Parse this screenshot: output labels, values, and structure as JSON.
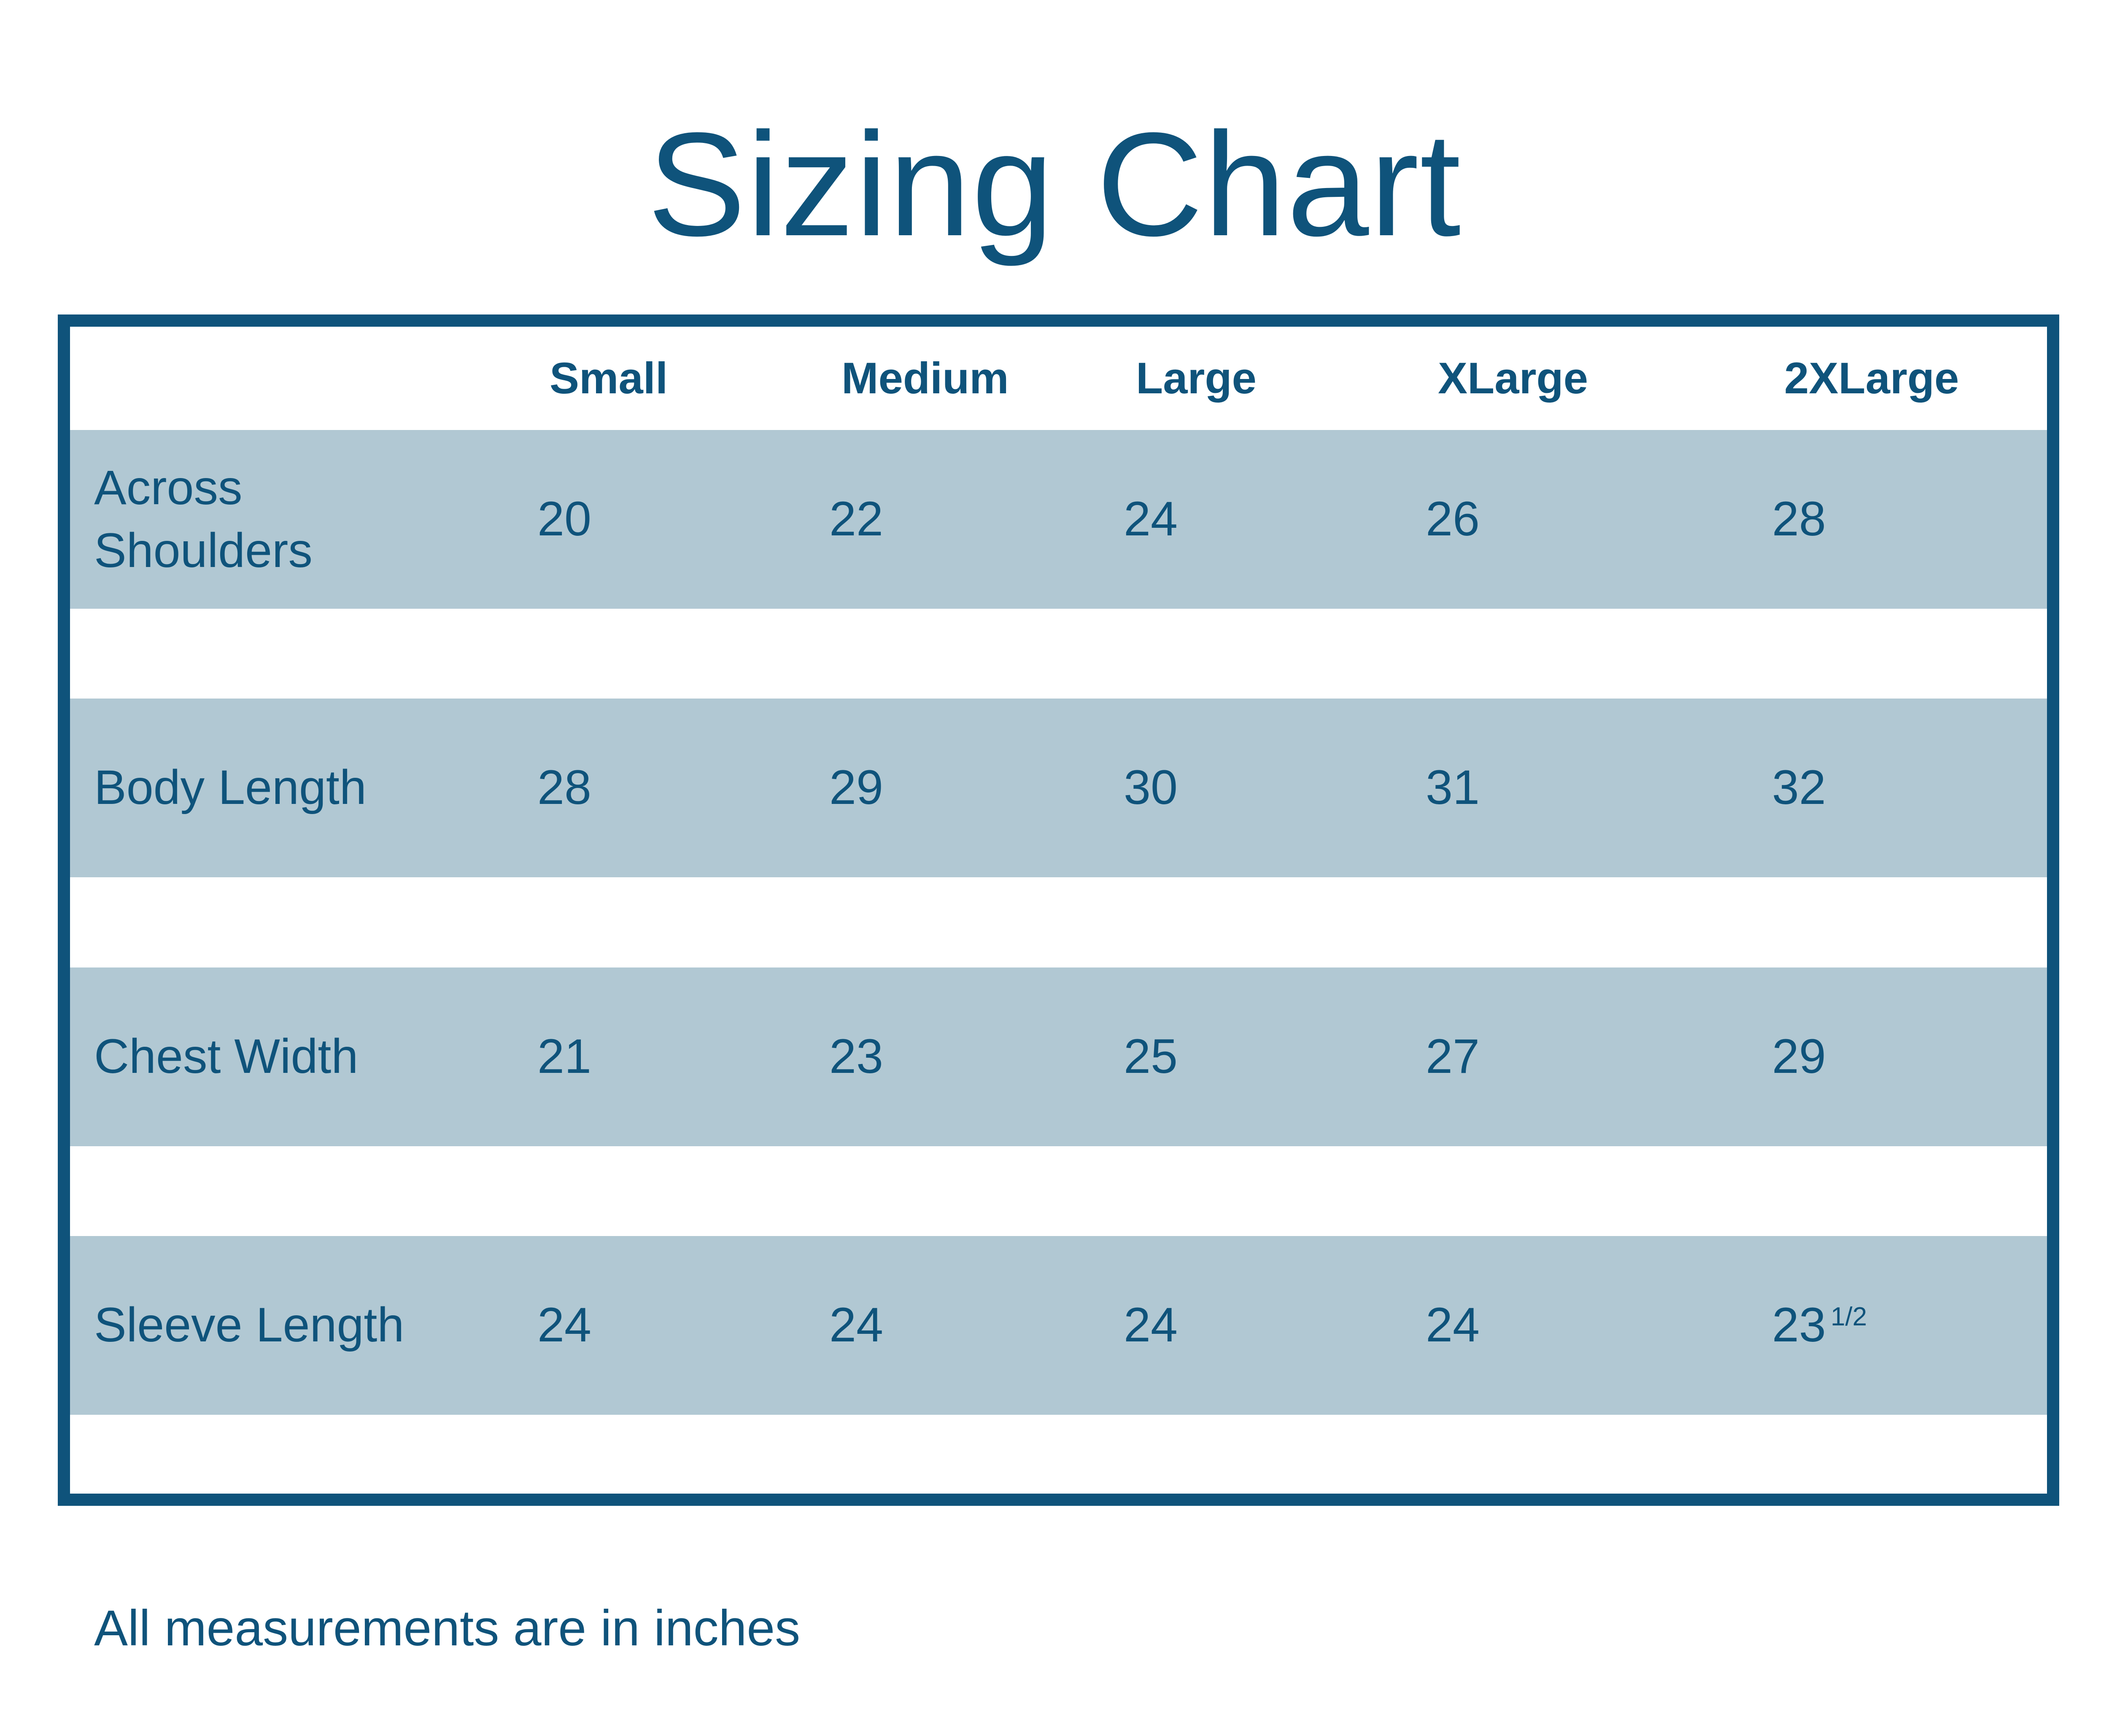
{
  "title": "Sizing Chart",
  "footer_note": "All measurements are in inches",
  "colors": {
    "accent_dark_blue": "#0f537b",
    "row_light_blue": "#b1c8d3",
    "background": "#ffffff"
  },
  "table": {
    "columns": [
      "Small",
      "Medium",
      "Large",
      "XLarge",
      "2XLarge"
    ],
    "rows": [
      {
        "label": "Across\nShoulders",
        "values": [
          "20",
          "22",
          "24",
          "26",
          "28"
        ]
      },
      {
        "label": "Body Length",
        "values": [
          "28",
          "29",
          "30",
          "31",
          "32"
        ]
      },
      {
        "label": "Chest Width",
        "values": [
          "21",
          "23",
          "25",
          "27",
          "29"
        ]
      },
      {
        "label": "Sleeve Length",
        "values": [
          "24",
          "24",
          "24",
          "24",
          "23"
        ],
        "sup": "1/2"
      }
    ]
  },
  "chart_data": {
    "type": "table",
    "title": "Sizing Chart",
    "columns": [
      "Small",
      "Medium",
      "Large",
      "XLarge",
      "2XLarge"
    ],
    "row_labels": [
      "Across Shoulders",
      "Body Length",
      "Chest Width",
      "Sleeve Length"
    ],
    "rows": [
      [
        20,
        22,
        24,
        26,
        28
      ],
      [
        28,
        29,
        30,
        31,
        32
      ],
      [
        21,
        23,
        25,
        27,
        29
      ],
      [
        24,
        24,
        24,
        24,
        23.5
      ]
    ],
    "note": "All measurements are in inches",
    "units": "inches"
  }
}
